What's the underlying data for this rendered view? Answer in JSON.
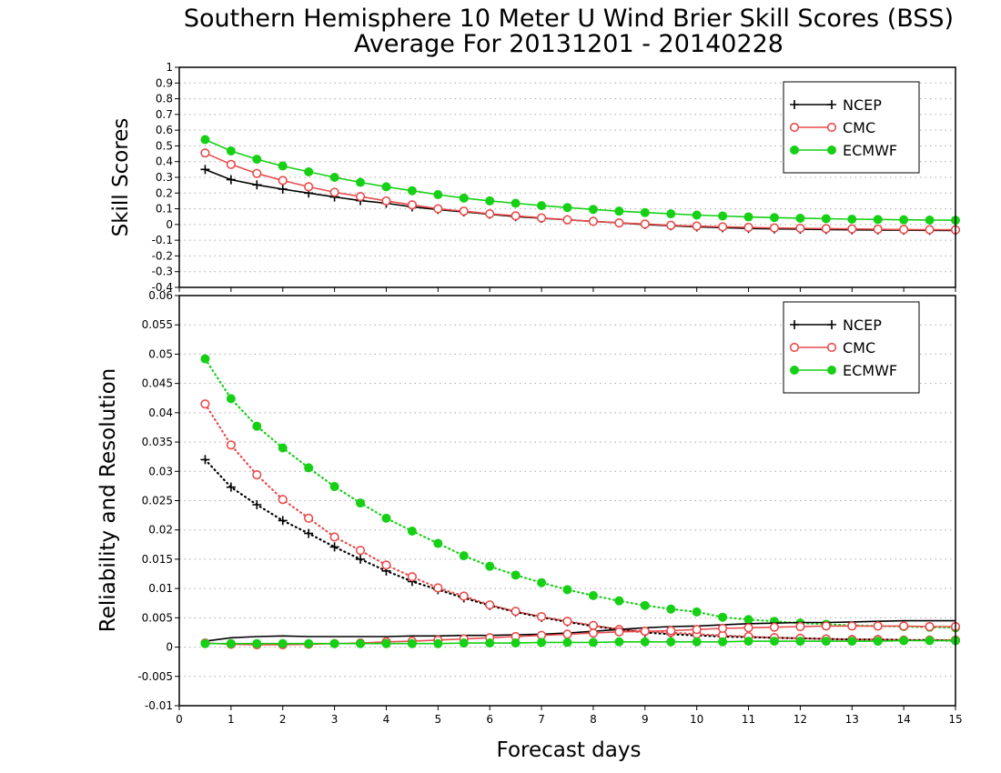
{
  "title_line1": "Southern Hemisphere 10 Meter U Wind Brier Skill Scores (BSS)",
  "title_line2": "Average For 20131201 - 20140228",
  "xlabel": "Forecast days",
  "colors": {
    "NCEP": "#000000",
    "CMC": "#e84c4c",
    "ECMWF": "#15d015"
  },
  "chart_data": [
    {
      "type": "line",
      "ylabel": "Skill Scores",
      "xlim": [
        0,
        15
      ],
      "ylim": [
        -0.4,
        1
      ],
      "grid": true,
      "legend_position": "top-right",
      "x": [
        0.5,
        1,
        1.5,
        2,
        2.5,
        3,
        3.5,
        4,
        4.5,
        5,
        5.5,
        6,
        6.5,
        7,
        7.5,
        8,
        8.5,
        9,
        9.5,
        10,
        10.5,
        11,
        11.5,
        12,
        12.5,
        13,
        13.5,
        14,
        14.5,
        15
      ],
      "series": [
        {
          "name": "NCEP",
          "marker": "plus",
          "values": [
            0.35,
            0.285,
            0.252,
            0.225,
            0.2,
            0.175,
            0.152,
            0.135,
            0.112,
            0.095,
            0.08,
            0.065,
            0.05,
            0.04,
            0.03,
            0.02,
            0.01,
            0.0,
            -0.008,
            -0.015,
            -0.02,
            -0.025,
            -0.028,
            -0.03,
            -0.032,
            -0.034,
            -0.035,
            -0.036,
            -0.037,
            -0.038
          ]
        },
        {
          "name": "CMC",
          "marker": "open-circle",
          "values": [
            0.455,
            0.382,
            0.325,
            0.28,
            0.24,
            0.205,
            0.178,
            0.15,
            0.125,
            0.1,
            0.085,
            0.068,
            0.055,
            0.042,
            0.03,
            0.02,
            0.01,
            0.003,
            -0.005,
            -0.01,
            -0.015,
            -0.018,
            -0.022,
            -0.024,
            -0.026,
            -0.028,
            -0.03,
            -0.032,
            -0.033,
            -0.034
          ]
        },
        {
          "name": "ECMWF",
          "marker": "filled-circle",
          "values": [
            0.54,
            0.468,
            0.415,
            0.372,
            0.335,
            0.3,
            0.268,
            0.24,
            0.215,
            0.19,
            0.168,
            0.15,
            0.135,
            0.12,
            0.108,
            0.096,
            0.085,
            0.076,
            0.068,
            0.06,
            0.054,
            0.048,
            0.044,
            0.04,
            0.037,
            0.034,
            0.032,
            0.03,
            0.028,
            0.027
          ]
        }
      ]
    },
    {
      "type": "line",
      "ylabel": "Reliability and Resolution",
      "xlim": [
        0,
        15
      ],
      "ylim": [
        -0.01,
        0.06
      ],
      "grid": true,
      "legend_position": "top-right",
      "x": [
        0.5,
        1,
        1.5,
        2,
        2.5,
        3,
        3.5,
        4,
        4.5,
        5,
        5.5,
        6,
        6.5,
        7,
        7.5,
        8,
        8.5,
        9,
        9.5,
        10,
        10.5,
        11,
        11.5,
        12,
        12.5,
        13,
        13.5,
        14,
        14.5,
        15
      ],
      "series": [
        {
          "name": "NCEP",
          "component": "resolution",
          "line": "dotted",
          "marker": "plus",
          "values": [
            0.032,
            0.0273,
            0.0243,
            0.0216,
            0.0194,
            0.0171,
            0.015,
            0.013,
            0.0112,
            0.0098,
            0.0084,
            0.0071,
            0.006,
            0.0051,
            0.0043,
            0.0036,
            0.003,
            0.0025,
            0.0022,
            0.002,
            0.0018,
            0.0017,
            0.0016,
            0.0015,
            0.0014,
            0.0013,
            0.0013,
            0.0012,
            0.0012,
            0.0011
          ]
        },
        {
          "name": "CMC",
          "component": "resolution",
          "line": "dotted",
          "marker": "open-circle",
          "values": [
            0.0415,
            0.0345,
            0.0294,
            0.0252,
            0.022,
            0.0188,
            0.0165,
            0.014,
            0.012,
            0.0101,
            0.0087,
            0.0072,
            0.0061,
            0.0052,
            0.0044,
            0.0037,
            0.003,
            0.0027,
            0.0025,
            0.0022,
            0.002,
            0.0018,
            0.0016,
            0.0015,
            0.0014,
            0.0013,
            0.0013,
            0.0012,
            0.0012,
            0.0012
          ]
        },
        {
          "name": "ECMWF",
          "component": "resolution",
          "line": "dotted",
          "marker": "filled-circle",
          "values": [
            0.0492,
            0.0424,
            0.0377,
            0.034,
            0.0306,
            0.0274,
            0.0246,
            0.022,
            0.0198,
            0.0177,
            0.0156,
            0.0138,
            0.0123,
            0.011,
            0.0098,
            0.0088,
            0.0079,
            0.0071,
            0.0065,
            0.006,
            0.0051,
            0.0047,
            0.0044,
            0.0041,
            0.0039,
            0.0037,
            0.0036,
            0.0035,
            0.0034,
            0.0033
          ]
        },
        {
          "name": "NCEP",
          "component": "reliability",
          "line": "solid",
          "marker": "none",
          "values": [
            0.001,
            0.0016,
            0.0018,
            0.0019,
            0.0018,
            0.0018,
            0.0018,
            0.0018,
            0.0019,
            0.0019,
            0.002,
            0.002,
            0.0021,
            0.0022,
            0.0024,
            0.0027,
            0.003,
            0.0033,
            0.0035,
            0.0036,
            0.0038,
            0.004,
            0.0041,
            0.0042,
            0.0042,
            0.0043,
            0.0044,
            0.0045,
            0.0045,
            0.0045
          ]
        },
        {
          "name": "CMC",
          "component": "reliability",
          "line": "solid",
          "marker": "open-circle",
          "values": [
            0.0007,
            0.0005,
            0.0004,
            0.0004,
            0.0005,
            0.0006,
            0.0007,
            0.0009,
            0.001,
            0.0012,
            0.0014,
            0.0016,
            0.0018,
            0.002,
            0.0022,
            0.0024,
            0.0026,
            0.0027,
            0.0028,
            0.003,
            0.0032,
            0.0033,
            0.0034,
            0.0035,
            0.0036,
            0.0036,
            0.0036,
            0.0036,
            0.0035,
            0.0035
          ]
        },
        {
          "name": "ECMWF",
          "component": "reliability",
          "line": "solid",
          "marker": "filled-circle",
          "values": [
            0.0006,
            0.0006,
            0.0006,
            0.0006,
            0.0006,
            0.0006,
            0.0006,
            0.0006,
            0.0006,
            0.0006,
            0.0007,
            0.0007,
            0.0007,
            0.0008,
            0.0008,
            0.0008,
            0.0009,
            0.0009,
            0.0009,
            0.0009,
            0.0009,
            0.001,
            0.001,
            0.001,
            0.001,
            0.001,
            0.001,
            0.0011,
            0.0011,
            0.0011
          ]
        }
      ]
    }
  ],
  "legend_labels": [
    "NCEP",
    "CMC",
    "ECMWF"
  ],
  "top_yticks": [
    "1",
    "0.9",
    "0.8",
    "0.7",
    "0.6",
    "0.5",
    "0.4",
    "0.3",
    "0.2",
    "0.1",
    "0",
    "-0.1",
    "-0.2",
    "-0.3",
    "-0.4"
  ],
  "bottom_yticks": [
    "0.06",
    "0.055",
    "0.05",
    "0.045",
    "0.04",
    "0.035",
    "0.03",
    "0.025",
    "0.02",
    "0.015",
    "0.01",
    "0.005",
    "0",
    "-0.005",
    "-0.01"
  ],
  "xticks": [
    "0",
    "1",
    "2",
    "3",
    "4",
    "5",
    "6",
    "7",
    "8",
    "9",
    "10",
    "11",
    "12",
    "13",
    "14",
    "15"
  ]
}
